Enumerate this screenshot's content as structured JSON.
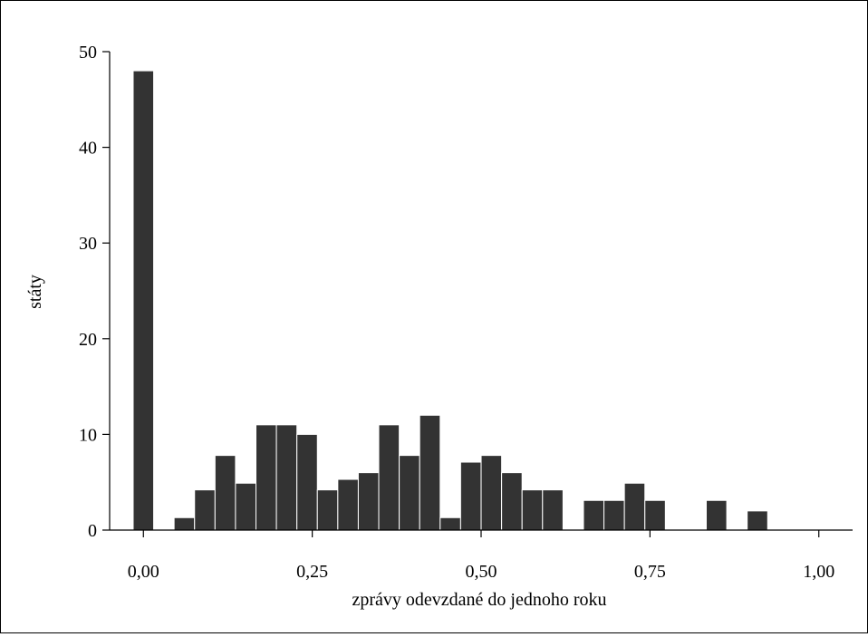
{
  "chart_data": {
    "type": "bar",
    "title": "",
    "xlabel": "zprávy odevzdané do jednoho roku",
    "ylabel": "státy",
    "xlim": [
      -0.05,
      1.05
    ],
    "ylim": [
      0,
      50
    ],
    "x_ticks": [
      {
        "value": 0.0,
        "label": "0,00"
      },
      {
        "value": 0.25,
        "label": "0,25"
      },
      {
        "value": 0.5,
        "label": "0,50"
      },
      {
        "value": 0.75,
        "label": "0,75"
      },
      {
        "value": 1.0,
        "label": "1,00"
      }
    ],
    "y_ticks": [
      {
        "value": 0,
        "label": "0"
      },
      {
        "value": 10,
        "label": "10"
      },
      {
        "value": 20,
        "label": "20"
      },
      {
        "value": 30,
        "label": "30"
      },
      {
        "value": 40,
        "label": "40"
      },
      {
        "value": 50,
        "label": "50"
      }
    ],
    "bin_width": 0.0303,
    "bins": [
      {
        "x": 0.0,
        "count": 48
      },
      {
        "x": 0.0606,
        "count": 1.3
      },
      {
        "x": 0.0909,
        "count": 4.2
      },
      {
        "x": 0.1212,
        "count": 7.8
      },
      {
        "x": 0.1515,
        "count": 4.9
      },
      {
        "x": 0.1818,
        "count": 11
      },
      {
        "x": 0.2121,
        "count": 11
      },
      {
        "x": 0.2424,
        "count": 10
      },
      {
        "x": 0.2727,
        "count": 4.2
      },
      {
        "x": 0.303,
        "count": 5.3
      },
      {
        "x": 0.3333,
        "count": 6
      },
      {
        "x": 0.3636,
        "count": 11
      },
      {
        "x": 0.3939,
        "count": 7.8
      },
      {
        "x": 0.4242,
        "count": 12
      },
      {
        "x": 0.4545,
        "count": 1.3
      },
      {
        "x": 0.4848,
        "count": 7.1
      },
      {
        "x": 0.5152,
        "count": 7.8
      },
      {
        "x": 0.5455,
        "count": 6
      },
      {
        "x": 0.5758,
        "count": 4.2
      },
      {
        "x": 0.6061,
        "count": 4.2
      },
      {
        "x": 0.6667,
        "count": 3.1
      },
      {
        "x": 0.697,
        "count": 3.1
      },
      {
        "x": 0.7273,
        "count": 4.9
      },
      {
        "x": 0.7576,
        "count": 3.1
      },
      {
        "x": 0.8485,
        "count": 3.1
      },
      {
        "x": 0.9091,
        "count": 2
      }
    ],
    "bar_color": "#333333",
    "grid": false,
    "legend": "none"
  }
}
